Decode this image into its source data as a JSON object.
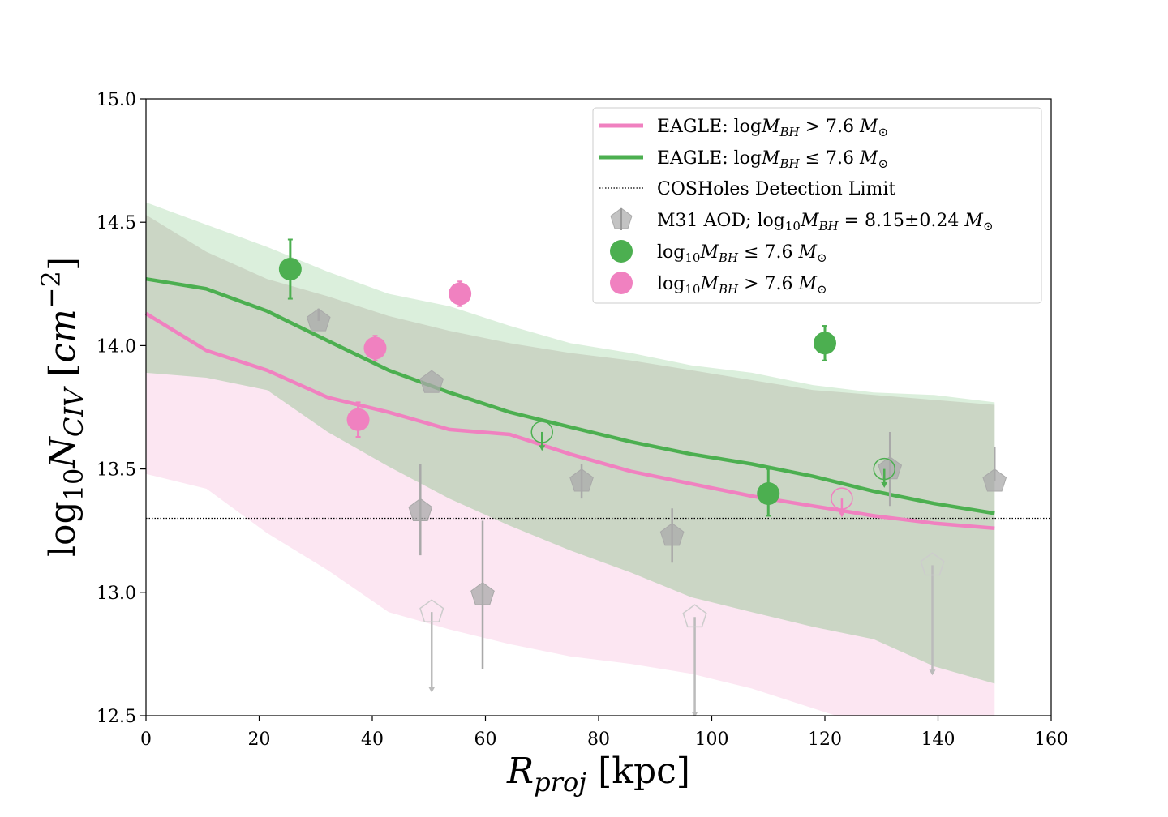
{
  "chart_data": {
    "type": "line",
    "xlabel": "R_proj [kpc]",
    "ylabel": "log10 N_CIV [cm^-2]",
    "xlim": [
      0,
      160
    ],
    "ylim": [
      12.5,
      15.0
    ],
    "xticks": [
      "0",
      "20",
      "40",
      "60",
      "80",
      "100",
      "120",
      "140",
      "160"
    ],
    "yticks": [
      "12.5",
      "13.0",
      "13.5",
      "14.0",
      "14.5",
      "15.0"
    ],
    "detection_limit": 13.3,
    "legend_position": "upper-right",
    "colors": {
      "pink": "#f081c0",
      "green": "#4caf50",
      "gray": "#a9a9a9"
    },
    "series": [
      {
        "name": "EAGLE: logM_BH > 7.6 M☉",
        "color": "#f081c0",
        "x": [
          0,
          10.7,
          21.4,
          32.1,
          42.9,
          53.6,
          64.3,
          75,
          85.7,
          96.4,
          107.1,
          117.9,
          128.6,
          139.3,
          150
        ],
        "y": [
          14.13,
          13.98,
          13.9,
          13.79,
          13.73,
          13.66,
          13.64,
          13.56,
          13.49,
          13.44,
          13.39,
          13.35,
          13.31,
          13.28,
          13.26
        ],
        "band_upper": [
          13.89,
          13.87,
          13.82,
          13.65,
          13.51,
          13.38,
          13.27,
          13.17,
          13.08,
          12.98,
          12.92,
          12.86,
          12.81,
          12.7,
          12.63
        ],
        "band_lower": [
          13.48,
          13.42,
          13.24,
          13.09,
          12.92,
          12.85,
          12.79,
          12.74,
          12.71,
          12.67,
          12.61,
          12.53,
          12.45,
          12.35,
          12.22
        ]
      },
      {
        "name": "EAGLE: logM_BH ≤ 7.6 M☉",
        "color": "#4caf50",
        "x": [
          0,
          10.7,
          21.4,
          32.1,
          42.9,
          53.6,
          64.3,
          75,
          85.7,
          96.4,
          107.1,
          117.9,
          128.6,
          139.3,
          150
        ],
        "y": [
          14.27,
          14.23,
          14.14,
          14.02,
          13.9,
          13.81,
          13.73,
          13.67,
          13.61,
          13.56,
          13.52,
          13.47,
          13.41,
          13.36,
          13.32
        ],
        "band_upper": [
          14.58,
          14.49,
          14.4,
          14.3,
          14.21,
          14.16,
          14.08,
          14.01,
          13.97,
          13.92,
          13.89,
          13.84,
          13.81,
          13.8,
          13.77
        ],
        "band_lower": [
          13.89,
          13.87,
          13.82,
          13.65,
          13.51,
          13.38,
          13.27,
          13.17,
          13.08,
          12.98,
          12.92,
          12.86,
          12.81,
          12.7,
          12.63
        ],
        "band_upper_gray": [
          14.53,
          14.38,
          14.27,
          14.2,
          14.12,
          14.06,
          14.01,
          13.97,
          13.94,
          13.9,
          13.86,
          13.82,
          13.8,
          13.78,
          13.76
        ]
      }
    ],
    "points": {
      "m31": [
        {
          "x": 30.5,
          "y": 14.1,
          "lo": 14.1,
          "hi": 14.15,
          "filled": true
        },
        {
          "x": 50.5,
          "y": 13.85,
          "lo": 13.85,
          "hi": 13.85,
          "filled": true
        },
        {
          "x": 48.5,
          "y": 13.33,
          "lo": 13.15,
          "hi": 13.52,
          "filled": true
        },
        {
          "x": 59.5,
          "y": 12.99,
          "lo": 12.69,
          "hi": 13.29,
          "filled": true
        },
        {
          "x": 77.0,
          "y": 13.45,
          "lo": 13.38,
          "hi": 13.52,
          "filled": true
        },
        {
          "x": 93.0,
          "y": 13.23,
          "lo": 13.12,
          "hi": 13.34,
          "filled": true
        },
        {
          "x": 131.5,
          "y": 13.5,
          "lo": 13.35,
          "hi": 13.65,
          "filled": true
        },
        {
          "x": 150.0,
          "y": 13.45,
          "lo": 13.45,
          "hi": 13.59,
          "filled": true
        },
        {
          "x": 50.5,
          "y": 12.92,
          "upper_limit_to": 12.6,
          "filled": false
        },
        {
          "x": 97.0,
          "y": 12.9,
          "upper_limit_to": 12.5,
          "filled": false
        },
        {
          "x": 139.0,
          "y": 13.11,
          "upper_limit_to": 12.67,
          "filled": false
        }
      ],
      "green": [
        {
          "x": 25.5,
          "y": 14.31,
          "lo": 14.19,
          "hi": 14.43,
          "filled": true
        },
        {
          "x": 110.0,
          "y": 13.4,
          "lo": 13.31,
          "hi": 13.5,
          "filled": true
        },
        {
          "x": 120.0,
          "y": 14.01,
          "lo": 13.94,
          "hi": 14.08,
          "filled": true
        },
        {
          "x": 70.0,
          "y": 13.65,
          "upper_limit_to": 13.58,
          "filled": false
        },
        {
          "x": 130.5,
          "y": 13.5,
          "upper_limit_to": 13.43,
          "filled": false
        }
      ],
      "pink": [
        {
          "x": 37.5,
          "y": 13.7,
          "lo": 13.63,
          "hi": 13.77,
          "filled": true
        },
        {
          "x": 40.5,
          "y": 13.99,
          "lo": 13.94,
          "hi": 14.04,
          "filled": true
        },
        {
          "x": 55.5,
          "y": 14.21,
          "lo": 14.16,
          "hi": 14.26,
          "filled": true
        },
        {
          "x": 123.0,
          "y": 13.38,
          "upper_limit_to": 13.31,
          "filled": false
        }
      ]
    },
    "legend": [
      {
        "text": "EAGLE: logM_BH > 7.6 M☉",
        "kind": "line",
        "color": "#f081c0"
      },
      {
        "text": "EAGLE: logM_BH ≤ 7.6 M☉",
        "kind": "line",
        "color": "#4caf50"
      },
      {
        "text": "COSHoles Detection Limit",
        "kind": "dotted",
        "color": "#000000"
      },
      {
        "text": "M31 AOD; log10M_BH = 8.15±0.24 M☉",
        "kind": "pentagon",
        "color": "#a9a9a9"
      },
      {
        "text": "log10M_BH ≤ 7.6 M☉",
        "kind": "circle",
        "color": "#4caf50"
      },
      {
        "text": "log10M_BH > 7.6 M☉",
        "kind": "circle",
        "color": "#f081c0"
      }
    ]
  }
}
